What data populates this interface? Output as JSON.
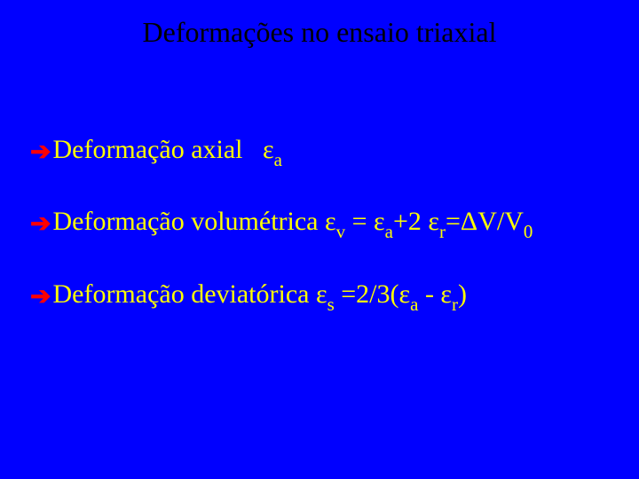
{
  "slide": {
    "background_color": "#0000ff",
    "title_color": "#000000",
    "bullet_arrow_color": "#ff0000",
    "bullet_text_color": "#ffff00",
    "title_fontsize": 32,
    "bullet_fontsize": 30,
    "font_family": "Times New Roman"
  },
  "title": "Deformações no ensaio triaxial",
  "bullets": [
    {
      "word": "Deformação",
      "rest_html": " axial&nbsp;&nbsp; ε<span class=\"sub\">a</span>"
    },
    {
      "word": "Deformação",
      "rest_html": " volumétrica ε<span class=\"sub\">v</span> = ε<span class=\"sub\">a</span>+2 ε<span class=\"sub\">r</span>=ΔV/V<span class=\"sub\">0</span>"
    },
    {
      "word": "Deformação",
      "rest_html": " deviatórica ε<span class=\"sub\">s</span> =2/3(ε<span class=\"sub\">a</span> - ε<span class=\"sub\">r</span>)"
    }
  ],
  "arrow_glyph": "➔"
}
